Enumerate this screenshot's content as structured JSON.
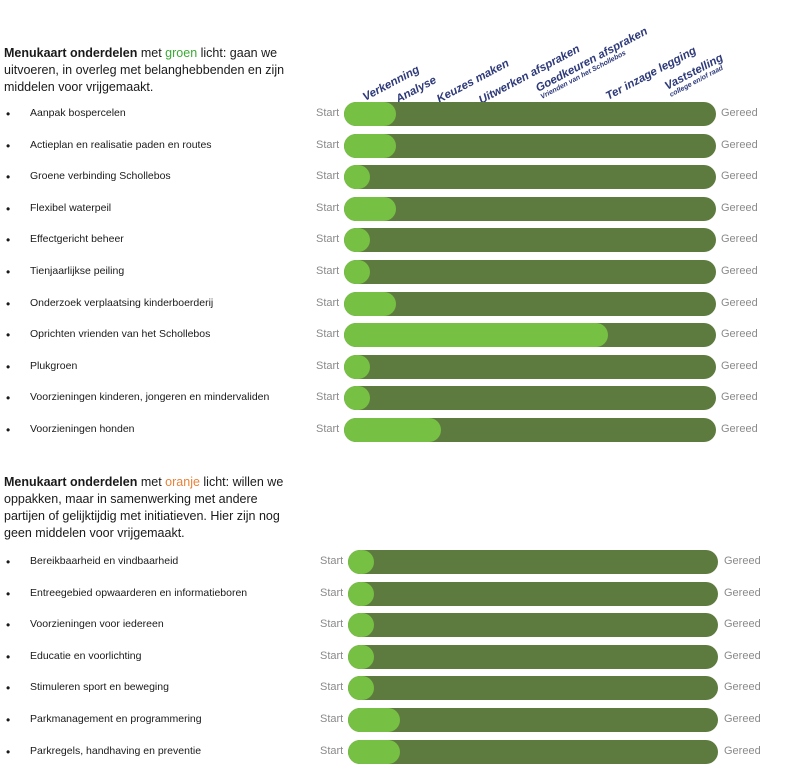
{
  "section1": {
    "heading_bold": "Menukaart onderdelen",
    "heading_pre": " met ",
    "heading_color_word": "groen",
    "heading_rest": " licht: gaan we uitvoeren, in overleg met belanghebbenden en zijn middelen voor vrijgemaakt."
  },
  "phases": [
    {
      "label": "Verkenning",
      "sub": ""
    },
    {
      "label": "Analyse",
      "sub": ""
    },
    {
      "label": "Keuzes maken",
      "sub": ""
    },
    {
      "label": "Uitwerken afspraken",
      "sub": ""
    },
    {
      "label": "Goedkeuren afspraken",
      "sub": "Vrienden van het Schollebos"
    },
    {
      "label": "Ter inzage legging",
      "sub": ""
    },
    {
      "label": "Vaststelling",
      "sub": "college en/of raad"
    }
  ],
  "labels": {
    "start": "Start",
    "done": "Gereed",
    "bullet": "•"
  },
  "colors": {
    "bar_dark": "#5d7b3f",
    "bar_fill": "#76c043",
    "phase_text": "#2e3a7a",
    "green_word": "#3aaa35",
    "orange_word": "#e8823a"
  },
  "group1": [
    {
      "label": "Aanpak bospercelen",
      "progress": 0.14
    },
    {
      "label": "Actieplan en realisatie paden en routes",
      "progress": 0.14
    },
    {
      "label": "Groene verbinding Schollebos",
      "progress": 0.07
    },
    {
      "label": "Flexibel waterpeil",
      "progress": 0.14
    },
    {
      "label": "Effectgericht beheer",
      "progress": 0.07
    },
    {
      "label": "Tienjaarlijkse peiling",
      "progress": 0.07
    },
    {
      "label": "Onderzoek verplaatsing kinderboerderij",
      "progress": 0.14
    },
    {
      "label": "Oprichten vrienden van het Schollebos",
      "progress": 0.71
    },
    {
      "label": "Plukgroen",
      "progress": 0.07
    },
    {
      "label": "Voorzieningen kinderen, jongeren en mindervaliden",
      "progress": 0.07
    },
    {
      "label": "Voorzieningen honden",
      "progress": 0.26
    }
  ],
  "section2": {
    "heading_bold": "Menukaart onderdelen",
    "heading_pre": " met ",
    "heading_color_word": "oranje",
    "heading_rest": " licht: willen we oppakken, maar in samenwerking met andere partijen of gelijktijdig met initiatieven. Hier zijn nog geen middelen voor vrijgemaakt."
  },
  "group2": [
    {
      "label": "Bereikbaarheid en vindbaarheid",
      "progress": 0.07
    },
    {
      "label": "Entreegebied opwaarderen en informatieboren",
      "progress": 0.07
    },
    {
      "label": "Voorzieningen voor iedereen",
      "progress": 0.07
    },
    {
      "label": "Educatie en voorlichting",
      "progress": 0.07
    },
    {
      "label": "Stimuleren sport en beweging",
      "progress": 0.07
    },
    {
      "label": "Parkmanagement en programmering",
      "progress": 0.14
    },
    {
      "label": "Parkregels, handhaving en preventie",
      "progress": 0.14
    }
  ]
}
